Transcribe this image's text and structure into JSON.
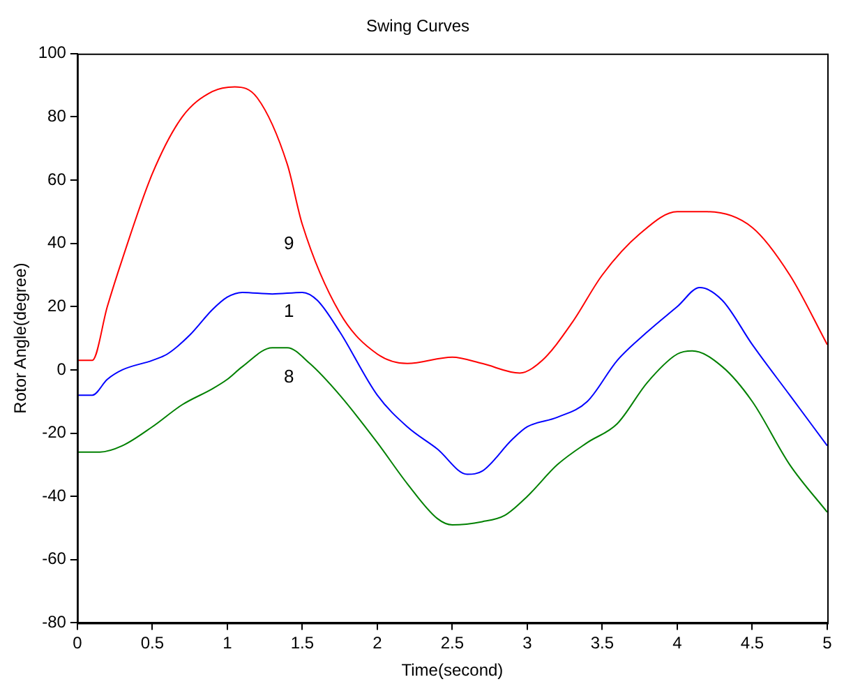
{
  "chart_data": {
    "type": "line",
    "title": "Swing Curves",
    "xlabel": "Time(second)",
    "ylabel": "Rotor Angle(degree)",
    "xlim": [
      0,
      5
    ],
    "xticks": [
      0,
      0.5,
      1,
      1.5,
      2,
      2.5,
      3,
      3.5,
      4,
      4.5,
      5
    ],
    "ylim": [
      -80,
      100
    ],
    "yticks": [
      -80,
      -60,
      -40,
      -20,
      0,
      20,
      40,
      60,
      80,
      100
    ],
    "grid": false,
    "legend": false,
    "marker": "none",
    "line_style": "solid",
    "series": [
      {
        "name": "9",
        "color": "#ff0000",
        "x": [
          0,
          0.1,
          0.2,
          0.3,
          0.5,
          0.7,
          0.9,
          1.05,
          1.2,
          1.4,
          1.5,
          1.75,
          2,
          2.2,
          2.5,
          2.7,
          2.95,
          3.1,
          3.3,
          3.5,
          3.75,
          4,
          4.2,
          4.5,
          4.75,
          5
        ],
        "values": [
          3,
          3,
          20,
          35,
          62,
          80,
          88,
          89.5,
          86,
          65,
          46,
          18,
          5,
          2,
          4,
          2,
          -1,
          3,
          15,
          30,
          43,
          50,
          50,
          45,
          30,
          8
        ]
      },
      {
        "name": "1",
        "color": "#0000ff",
        "x": [
          0,
          0.1,
          0.2,
          0.3,
          0.5,
          0.6,
          0.75,
          0.9,
          1,
          1.1,
          1.3,
          1.5,
          1.6,
          1.75,
          2,
          2.2,
          2.4,
          2.6,
          2.7,
          2.9,
          3,
          3.2,
          3.4,
          3.6,
          3.8,
          4,
          4.15,
          4.3,
          4.5,
          4.75,
          5
        ],
        "values": [
          -8,
          -8,
          -3,
          0,
          3,
          5,
          11,
          19,
          23,
          24.5,
          24,
          24.5,
          22,
          12,
          -8,
          -18,
          -25,
          -33,
          -32,
          -22,
          -18,
          -15,
          -10,
          3,
          12,
          20,
          26,
          22,
          8,
          -8,
          -24
        ]
      },
      {
        "name": "8",
        "color": "#008000",
        "x": [
          0,
          0.15,
          0.3,
          0.5,
          0.7,
          0.9,
          1,
          1.1,
          1.3,
          1.4,
          1.55,
          1.75,
          2,
          2.2,
          2.4,
          2.5,
          2.7,
          2.85,
          3,
          3.2,
          3.4,
          3.6,
          3.8,
          4,
          4.1,
          4.3,
          4.5,
          4.75,
          5
        ],
        "values": [
          -26,
          -26,
          -24,
          -18,
          -11,
          -6,
          -3,
          1,
          7,
          7,
          2,
          -8,
          -23,
          -36,
          -47,
          -49,
          -48,
          -46,
          -40,
          -30,
          -23,
          -17,
          -4,
          5,
          6,
          1,
          -10,
          -30,
          -45
        ]
      }
    ]
  }
}
